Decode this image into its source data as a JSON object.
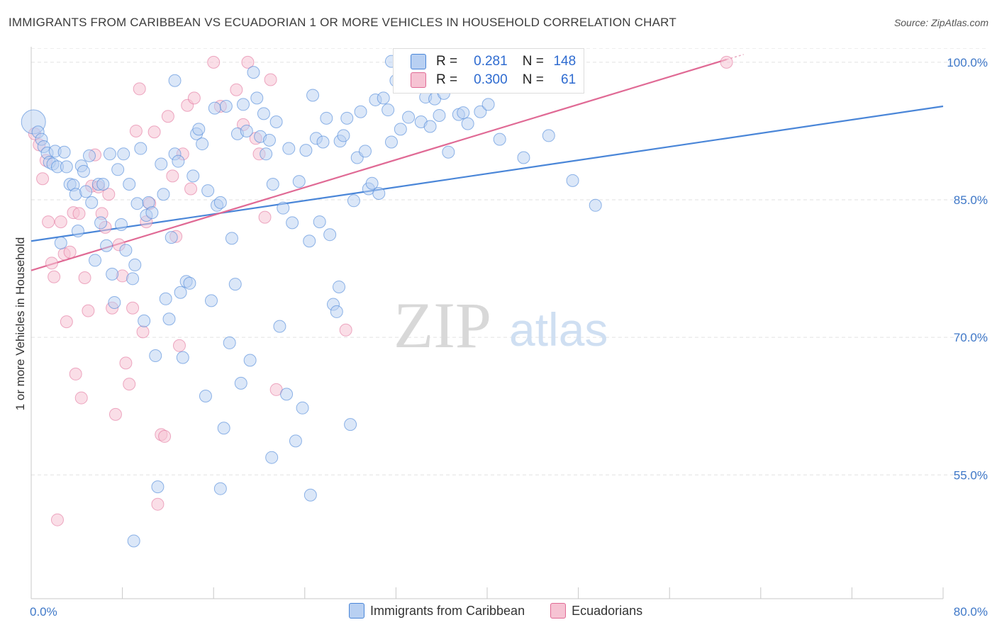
{
  "title": "IMMIGRANTS FROM CARIBBEAN VS ECUADORIAN 1 OR MORE VEHICLES IN HOUSEHOLD CORRELATION CHART",
  "source": "Source: ZipAtlas.com",
  "watermark": {
    "zip": "ZIP",
    "atlas": "atlas"
  },
  "colors": {
    "blue": "#4a86d8",
    "blue_fill": "#b8d0f2",
    "pink": "#e06a95",
    "pink_fill": "#f6c3d3",
    "grid": "#e2e2e2",
    "tick_label": "#3f78c8"
  },
  "stats_box": {
    "rows": [
      {
        "r_label": "R =",
        "r_value": "0.281",
        "n_label": "N =",
        "n_value": "148"
      },
      {
        "r_label": "R =",
        "r_value": "0.300",
        "n_label": "N =",
        "n_value": "61"
      }
    ]
  },
  "legend": [
    {
      "label": "Immigrants from Caribbean"
    },
    {
      "label": "Ecuadorians"
    }
  ],
  "chart_data": {
    "type": "scatter",
    "title": "IMMIGRANTS FROM CARIBBEAN VS ECUADORIAN 1 OR MORE VEHICLES IN HOUSEHOLD CORRELATION CHART",
    "xlabel": "",
    "ylabel": "1 or more Vehicles in Household",
    "xlim": [
      0,
      80
    ],
    "ylim": [
      41.5,
      102
    ],
    "x_tick_labels": [
      "0.0%",
      "80.0%"
    ],
    "y_ticks": [
      55,
      70,
      85,
      100
    ],
    "y_tick_labels": [
      "55.0%",
      "70.0%",
      "85.0%",
      "100.0%"
    ],
    "grid": true,
    "legend_position": "bottom-center",
    "series": [
      {
        "name": "Immigrants from Caribbean",
        "color": "#4a86d8",
        "trend": {
          "x": [
            0,
            80
          ],
          "y": [
            80.5,
            95.2
          ]
        },
        "points": [
          [
            0.2,
            93.5
          ],
          [
            0.6,
            92.4
          ],
          [
            0.9,
            91.6
          ],
          [
            1.1,
            90.8
          ],
          [
            1.4,
            90.1
          ],
          [
            1.6,
            89.1
          ],
          [
            1.9,
            88.9
          ],
          [
            2.1,
            90.3
          ],
          [
            2.3,
            88.6
          ],
          [
            2.6,
            80.3
          ],
          [
            2.9,
            90.2
          ],
          [
            3.1,
            88.6
          ],
          [
            3.4,
            86.7
          ],
          [
            3.7,
            86.6
          ],
          [
            3.9,
            85.6
          ],
          [
            4.1,
            81.6
          ],
          [
            4.4,
            88.7
          ],
          [
            4.6,
            88.1
          ],
          [
            4.8,
            85.9
          ],
          [
            5.1,
            89.8
          ],
          [
            5.3,
            84.7
          ],
          [
            5.6,
            78.4
          ],
          [
            5.9,
            86.7
          ],
          [
            6.1,
            82.5
          ],
          [
            6.3,
            86.7
          ],
          [
            6.6,
            80.0
          ],
          [
            6.9,
            90.0
          ],
          [
            7.1,
            76.9
          ],
          [
            7.3,
            73.8
          ],
          [
            7.6,
            88.3
          ],
          [
            7.9,
            82.3
          ],
          [
            8.1,
            90.0
          ],
          [
            8.3,
            79.5
          ],
          [
            8.6,
            86.7
          ],
          [
            8.9,
            76.4
          ],
          [
            9.1,
            77.9
          ],
          [
            9.3,
            84.6
          ],
          [
            9.6,
            90.6
          ],
          [
            9.9,
            71.8
          ],
          [
            10.1,
            83.3
          ],
          [
            10.3,
            84.7
          ],
          [
            10.6,
            83.6
          ],
          [
            10.9,
            68.0
          ],
          [
            11.1,
            53.7
          ],
          [
            11.4,
            88.9
          ],
          [
            11.6,
            85.6
          ],
          [
            11.8,
            74.2
          ],
          [
            12.1,
            72.0
          ],
          [
            12.3,
            80.9
          ],
          [
            12.6,
            90.0
          ],
          [
            12.9,
            89.2
          ],
          [
            13.1,
            74.9
          ],
          [
            13.3,
            67.8
          ],
          [
            13.6,
            76.1
          ],
          [
            13.9,
            75.9
          ],
          [
            14.2,
            87.6
          ],
          [
            14.5,
            92.2
          ],
          [
            14.7,
            92.7
          ],
          [
            15.0,
            91.1
          ],
          [
            15.3,
            63.6
          ],
          [
            15.5,
            86.0
          ],
          [
            15.8,
            74.0
          ],
          [
            16.1,
            95.0
          ],
          [
            16.3,
            84.4
          ],
          [
            16.6,
            84.7
          ],
          [
            16.9,
            60.1
          ],
          [
            17.1,
            95.2
          ],
          [
            17.4,
            69.4
          ],
          [
            17.6,
            80.8
          ],
          [
            17.9,
            75.8
          ],
          [
            18.1,
            92.2
          ],
          [
            18.4,
            65.0
          ],
          [
            18.6,
            95.4
          ],
          [
            18.9,
            92.5
          ],
          [
            19.2,
            67.5
          ],
          [
            19.5,
            98.9
          ],
          [
            19.8,
            96.1
          ],
          [
            20.1,
            91.9
          ],
          [
            20.4,
            94.4
          ],
          [
            20.6,
            90.0
          ],
          [
            20.9,
            91.5
          ],
          [
            21.2,
            86.7
          ],
          [
            21.5,
            93.5
          ],
          [
            21.8,
            71.2
          ],
          [
            22.1,
            84.1
          ],
          [
            22.4,
            63.8
          ],
          [
            22.6,
            90.6
          ],
          [
            22.9,
            82.5
          ],
          [
            23.2,
            58.7
          ],
          [
            23.5,
            87.0
          ],
          [
            23.8,
            62.3
          ],
          [
            24.1,
            90.4
          ],
          [
            24.4,
            80.5
          ],
          [
            24.7,
            96.4
          ],
          [
            25.0,
            91.7
          ],
          [
            25.3,
            82.6
          ],
          [
            25.6,
            91.3
          ],
          [
            25.9,
            93.9
          ],
          [
            26.2,
            81.2
          ],
          [
            26.5,
            73.6
          ],
          [
            26.8,
            72.8
          ],
          [
            27.1,
            91.4
          ],
          [
            27.4,
            92.0
          ],
          [
            27.7,
            93.9
          ],
          [
            28.0,
            60.5
          ],
          [
            28.3,
            84.9
          ],
          [
            28.6,
            89.6
          ],
          [
            28.9,
            94.6
          ],
          [
            29.3,
            90.3
          ],
          [
            29.6,
            86.2
          ],
          [
            29.9,
            86.8
          ],
          [
            30.2,
            95.9
          ],
          [
            30.5,
            85.7
          ],
          [
            30.9,
            96.1
          ],
          [
            31.3,
            94.8
          ],
          [
            31.6,
            91.3
          ],
          [
            32.0,
            98.0
          ],
          [
            32.4,
            92.7
          ],
          [
            32.8,
            98.6
          ],
          [
            33.1,
            94.0
          ],
          [
            33.4,
            99.9
          ],
          [
            33.8,
            100.3
          ],
          [
            34.2,
            93.5
          ],
          [
            34.6,
            96.2
          ],
          [
            35.0,
            93.0
          ],
          [
            35.4,
            96.0
          ],
          [
            35.8,
            94.2
          ],
          [
            36.2,
            96.6
          ],
          [
            36.6,
            90.2
          ],
          [
            37.0,
            100.0
          ],
          [
            37.5,
            94.3
          ],
          [
            37.9,
            94.5
          ],
          [
            38.3,
            93.3
          ],
          [
            38.8,
            100.0
          ],
          [
            39.4,
            94.6
          ],
          [
            40.1,
            95.4
          ],
          [
            41.1,
            91.6
          ],
          [
            43.2,
            89.6
          ],
          [
            45.4,
            92.0
          ],
          [
            47.5,
            87.1
          ],
          [
            49.5,
            84.4
          ],
          [
            27.0,
            75.5
          ],
          [
            24.5,
            52.8
          ],
          [
            21.1,
            56.9
          ],
          [
            16.6,
            53.5
          ],
          [
            9.0,
            47.8
          ],
          [
            12.6,
            98.0
          ],
          [
            31.6,
            100.1
          ]
        ]
      },
      {
        "name": "Ecuadorians",
        "color": "#e06a95",
        "trend": {
          "x": [
            0,
            61
          ],
          "y": [
            77.3,
            100.3
          ]
        },
        "points": [
          [
            0.3,
            92.2
          ],
          [
            0.7,
            91.0
          ],
          [
            1.0,
            87.3
          ],
          [
            1.3,
            89.3
          ],
          [
            1.5,
            82.6
          ],
          [
            1.8,
            78.1
          ],
          [
            2.0,
            76.6
          ],
          [
            2.3,
            50.1
          ],
          [
            2.6,
            82.6
          ],
          [
            2.9,
            79.1
          ],
          [
            3.1,
            71.7
          ],
          [
            3.4,
            79.3
          ],
          [
            3.7,
            83.6
          ],
          [
            3.9,
            66.0
          ],
          [
            4.2,
            83.5
          ],
          [
            4.4,
            63.4
          ],
          [
            4.7,
            76.5
          ],
          [
            5.0,
            72.9
          ],
          [
            5.3,
            86.5
          ],
          [
            5.6,
            89.9
          ],
          [
            5.9,
            86.4
          ],
          [
            6.2,
            83.5
          ],
          [
            6.5,
            82.0
          ],
          [
            6.8,
            85.6
          ],
          [
            7.1,
            73.2
          ],
          [
            7.4,
            61.6
          ],
          [
            7.7,
            80.1
          ],
          [
            8.0,
            76.7
          ],
          [
            8.3,
            67.2
          ],
          [
            8.6,
            64.9
          ],
          [
            8.9,
            73.2
          ],
          [
            9.2,
            92.5
          ],
          [
            9.5,
            97.1
          ],
          [
            9.8,
            70.6
          ],
          [
            10.1,
            82.6
          ],
          [
            10.4,
            84.6
          ],
          [
            10.8,
            92.4
          ],
          [
            11.1,
            51.8
          ],
          [
            11.4,
            59.4
          ],
          [
            11.7,
            59.2
          ],
          [
            12.0,
            94.1
          ],
          [
            12.4,
            87.6
          ],
          [
            12.7,
            81.0
          ],
          [
            13.0,
            69.1
          ],
          [
            13.3,
            90.0
          ],
          [
            13.7,
            95.3
          ],
          [
            14.0,
            86.2
          ],
          [
            14.3,
            96.1
          ],
          [
            16.0,
            100.0
          ],
          [
            19.0,
            100.0
          ],
          [
            16.6,
            95.2
          ],
          [
            18.0,
            97.0
          ],
          [
            19.7,
            91.7
          ],
          [
            20.0,
            90.0
          ],
          [
            20.5,
            83.1
          ],
          [
            21.5,
            64.3
          ],
          [
            21.0,
            98.1
          ],
          [
            27.6,
            70.8
          ],
          [
            37.8,
            100.0
          ],
          [
            61.0,
            100.0
          ],
          [
            18.6,
            93.2
          ]
        ]
      }
    ]
  }
}
